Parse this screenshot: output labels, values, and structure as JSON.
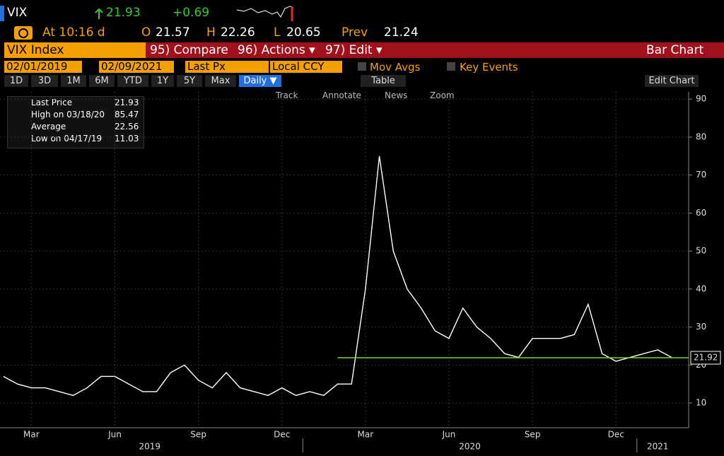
{
  "header": {
    "symbol": "VIX",
    "last": "21.93",
    "change": "+0.69",
    "time": "At 10:16 d",
    "open_label": "O",
    "open": "21.57",
    "high_label": "H",
    "high": "22.26",
    "low_label": "L",
    "low": "20.65",
    "prev_label": "Prev",
    "prev": "21.24"
  },
  "menu": {
    "security": "VIX Index",
    "compare": "95) Compare",
    "actions": "96) Actions ▾",
    "edit": "97) Edit ▾",
    "chart_type": "Bar Chart"
  },
  "fields": {
    "start": "02/01/2019",
    "end": "02/09/2021",
    "field": "Last Px",
    "currency": "Local CCY",
    "mov_avgs": "Mov Avgs",
    "key_events": "Key Events"
  },
  "periods": [
    "1D",
    "3D",
    "1M",
    "6M",
    "YTD",
    "1Y",
    "5Y",
    "Max"
  ],
  "frequency": "Daily ▼",
  "table": "Table",
  "edit_chart": "Edit Chart",
  "tools": [
    "Track",
    "Annotate",
    "News",
    "Zoom"
  ],
  "legend": [
    {
      "label": "Last Price",
      "value": "21.93"
    },
    {
      "label": "High on 03/18/20",
      "value": "85.47"
    },
    {
      "label": "Average",
      "value": "22.56"
    },
    {
      "label": "Low on 04/17/19",
      "value": "11.03"
    }
  ],
  "chart_data": {
    "type": "line",
    "color": "#ffffff",
    "categories": [
      null,
      null,
      "Mar",
      null,
      null,
      null,
      null,
      null,
      "Jun",
      null,
      null,
      null,
      null,
      null,
      "Sep",
      null,
      null,
      null,
      null,
      null,
      "Dec",
      null,
      null,
      null,
      null,
      null,
      "Mar",
      null,
      null,
      null,
      null,
      null,
      "Jun",
      null,
      null,
      null,
      null,
      null,
      "Sep",
      null,
      null,
      null,
      null,
      null,
      "Dec",
      null,
      null,
      null,
      null
    ],
    "values": [
      17,
      15,
      14,
      14,
      13,
      12,
      14,
      17,
      17,
      15,
      13,
      13,
      18,
      20,
      16,
      14,
      18,
      14,
      13,
      12,
      14,
      12,
      13,
      12,
      15,
      15,
      40,
      75,
      50,
      40,
      35,
      29,
      27,
      35,
      30,
      27,
      23,
      22,
      27,
      27,
      27,
      28,
      36,
      23,
      21,
      22,
      23,
      24,
      22
    ],
    "years": [
      "2019",
      "2020",
      "2021"
    ],
    "ylim": [
      3.5,
      91.9
    ],
    "yticks": [
      10,
      20,
      30,
      40,
      50,
      60,
      70,
      80,
      90
    ],
    "grid": true,
    "last_tag": 21.92,
    "last_tag_color": "#7ed321"
  }
}
